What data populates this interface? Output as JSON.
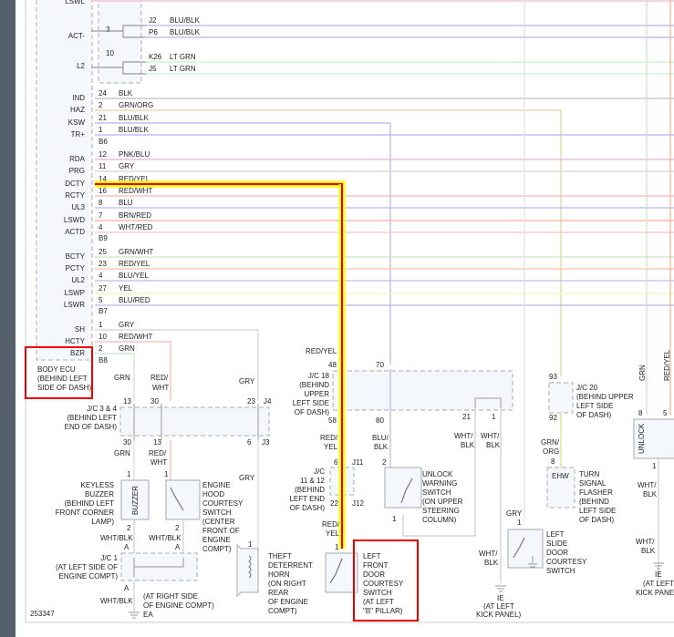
{
  "diagram_id": "253347",
  "highlight_colors": {
    "outer": "#ffff00",
    "inner": "#e00000",
    "callout_box": "#e00000"
  },
  "ecu": {
    "name_lines": [
      "BODY ECU",
      "(BEHIND LEFT",
      "SIDE OF DASH)"
    ],
    "top_label": "LSWL",
    "act": {
      "label": "ACT-",
      "pin": "3",
      "branches": [
        {
          "conn": "J2",
          "wire": "BLU/BLK"
        },
        {
          "conn": "P6",
          "wire": "BLU/BLK"
        }
      ]
    },
    "l2": {
      "label": "L2",
      "pin": "10",
      "branches": [
        {
          "conn": "K26",
          "wire": "LT GRN"
        },
        {
          "conn": "J5",
          "wire": "LT GRN"
        }
      ]
    },
    "groups": [
      {
        "connector": "B6",
        "rows": [
          {
            "name": "IND",
            "pin": "24",
            "wire": "BLK"
          },
          {
            "name": "HAZ",
            "pin": "2",
            "wire": "GRN/ORG"
          },
          {
            "name": "KSW",
            "pin": "21",
            "wire": "BLU/BLK"
          },
          {
            "name": "TR+",
            "pin": "1",
            "wire": "BLU/BLK"
          }
        ]
      },
      {
        "connector": "B9",
        "rows": [
          {
            "name": "RDA",
            "pin": "12",
            "wire": "PNK/BLU"
          },
          {
            "name": "PRG",
            "pin": "11",
            "wire": "GRY"
          },
          {
            "name": "DCTY",
            "pin": "14",
            "wire": "RED/YEL",
            "highlighted": true
          },
          {
            "name": "RCTY",
            "pin": "16",
            "wire": "RED/WHT"
          },
          {
            "name": "UL3",
            "pin": "8",
            "wire": "BLU"
          },
          {
            "name": "LSWD",
            "pin": "7",
            "wire": "BRN/RED"
          },
          {
            "name": "ACTD",
            "pin": "4",
            "wire": "WHT/RED"
          }
        ]
      },
      {
        "connector": "B7",
        "rows": [
          {
            "name": "BCTY",
            "pin": "25",
            "wire": "GRN/WHT"
          },
          {
            "name": "PCTY",
            "pin": "23",
            "wire": "RED/YEL"
          },
          {
            "name": "UL2",
            "pin": "4",
            "wire": "BLU/YEL"
          },
          {
            "name": "LSWP",
            "pin": "27",
            "wire": "YEL"
          },
          {
            "name": "LSWR",
            "pin": "5",
            "wire": "BLU/RED"
          }
        ]
      },
      {
        "connector": "B8",
        "rows": [
          {
            "name": "SH",
            "pin": "1",
            "wire": "GRY"
          },
          {
            "name": "HCTY",
            "pin": "10",
            "wire": "RED/WHT"
          },
          {
            "name": "BZR",
            "pin": "2",
            "wire": "GRN"
          }
        ]
      }
    ]
  },
  "jc34": {
    "name_lines": [
      "J/C 3 & 4",
      "(BEHIND LEFT",
      "END OF DASH)"
    ],
    "top_pins": [
      "13",
      "30",
      "23"
    ],
    "top_conn": "J4",
    "bottom_pins": [
      "30",
      "13",
      "6"
    ],
    "bottom_conn": "J3",
    "wires_in": [
      "GRN",
      "RED/",
      "WHT",
      "GRY"
    ],
    "wires_out": [
      "GRN",
      "RED/",
      "WHT",
      "GRY"
    ]
  },
  "buzzer": {
    "name_lines": [
      "KEYLESS",
      "BUZZER",
      "(BEHIND LEFT",
      "FRONT CORNER",
      "LAMP)"
    ],
    "inner": "BUZZER",
    "pin_top": "1",
    "pin_bottom": "2",
    "wire_out": "WHT/BLK",
    "conn": "A"
  },
  "hood_switch": {
    "name_lines": [
      "ENGINE",
      "HOOD",
      "COURTESY",
      "SWITCH",
      "(CENTER",
      "FRONT OF",
      "ENGINE",
      "COMPT)"
    ],
    "pin_top": "1",
    "pin_bottom": "2",
    "wire_out": "WHT/BLK",
    "conn": "A"
  },
  "jc1": {
    "name_lines": [
      "J/C 1",
      "(AT LEFT SIDE OF",
      "ENGINE COMPT)"
    ],
    "conn": "A",
    "wire_out": "WHT/BLK",
    "ground_lines": [
      "(AT RIGHT SIDE",
      "OF ENGINE COMPT)",
      "EA"
    ]
  },
  "horn": {
    "name_lines": [
      "THEFT",
      "DETERRENT",
      "HORN",
      "(ON RIGHT",
      "REAR",
      "OF ENGINE",
      "COMPT)"
    ],
    "pin": "1"
  },
  "jc18": {
    "name_lines": [
      "J/C 18",
      "(BEHIND",
      "UPPER",
      "LEFT SIDE",
      "OF DASH)"
    ],
    "wire_in": "RED/YEL",
    "top_pins": [
      "48",
      "70"
    ],
    "bottom_pins": [
      "58",
      "80",
      "21",
      "1"
    ],
    "wires_out": [
      "RED/",
      "YEL",
      "BLU/",
      "BLK",
      "WHT/",
      "BLK",
      "WHT/",
      "BLK"
    ]
  },
  "jc1112": {
    "name_lines": [
      "J/C",
      "11 & 12",
      "(BEHIND",
      "LEFT END",
      "OF DASH)"
    ],
    "pin_top": "6",
    "conn_top": "J11",
    "pin_bottom": "22",
    "conn_bottom": "J12",
    "wire_out": [
      "RED/",
      "YEL"
    ]
  },
  "door_switch": {
    "name_lines": [
      "LEFT",
      "FRONT",
      "DOOR",
      "COURTESY",
      "SWITCH",
      "(AT LEFT",
      "\"B\" PILLAR)"
    ],
    "pin": "1"
  },
  "unlock_switch": {
    "name_lines": [
      "UNLOCK",
      "WARNING",
      "SWITCH",
      "(ON UPPER",
      "STEERING",
      "COLUMN)"
    ],
    "pin_top": "2",
    "pin_bottom": "1"
  },
  "ground_ie_1": {
    "wire": [
      "WHT/",
      "BLK"
    ],
    "lines": [
      "IE",
      "(AT LEFT",
      "KICK PANEL)"
    ]
  },
  "jc20": {
    "name_lines": [
      "J/C 20",
      "(BEHIND UPPER",
      "LEFT SIDE",
      "OF DASH)"
    ],
    "pin_top": "93",
    "pin_bottom": "92",
    "wire_out": [
      "GRN/",
      "ORG"
    ]
  },
  "flasher": {
    "name_lines": [
      "TURN",
      "SIGNAL",
      "FLASHER",
      "(BEHIND",
      "LEFT SIDE",
      "OF DASH)"
    ],
    "pin": "8",
    "inner": "EHW"
  },
  "slide_switch": {
    "name_lines": [
      "LEFT",
      "SLIDE",
      "DOOR",
      "COURTESY",
      "SWITCH"
    ],
    "wire_in": "GRY",
    "pin": "1"
  },
  "unlock_unit": {
    "inner": "UNLOCK",
    "pins": [
      "8",
      "5"
    ],
    "pin_bottom": "1",
    "wires_in": [
      "GRN",
      "RED/YEL"
    ],
    "wire_out": [
      "WHT/",
      "BLK"
    ],
    "wire_out2": [
      "WHT/",
      "BLK"
    ],
    "ground_lines": [
      "IE",
      "(AT LEFT",
      "KICK PANEL"
    ]
  }
}
